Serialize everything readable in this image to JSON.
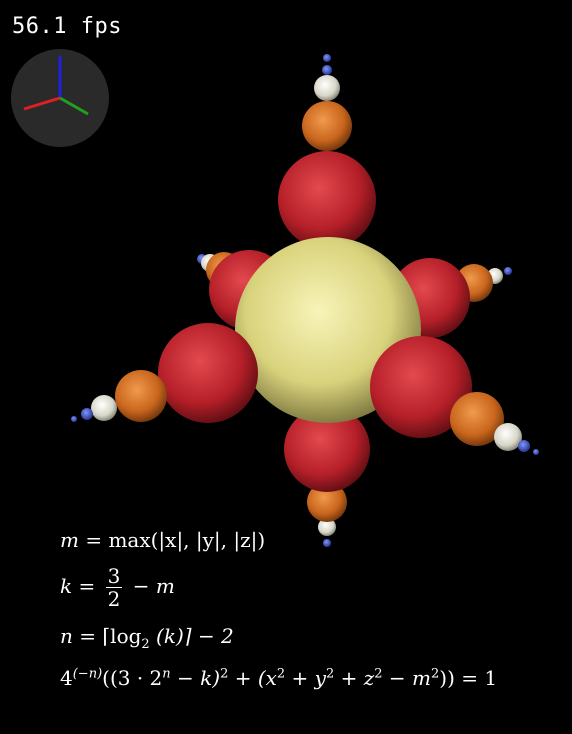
{
  "hud": {
    "fps": "56.1 fps"
  },
  "gizmo": {
    "x_color": "#e02020",
    "y_color": "#20a020",
    "z_color": "#2020e0"
  },
  "scene": {
    "center_color": "#e3dd86",
    "colors": {
      "red": "#b51f28",
      "orange": "#d36a1e",
      "white": "#e8e6d8",
      "blue": "#2b47c8"
    }
  },
  "equations": {
    "eq1": {
      "lhs": "m",
      "op": "=",
      "rhs": "max(|x|, |y|, |z|)"
    },
    "eq2": {
      "lhs": "k",
      "op": "=",
      "num": "3",
      "den": "2",
      "rest": "− m"
    },
    "eq3": {
      "lhs": "n",
      "op": "=",
      "rhs": "⌈log",
      "sub": "2",
      "rhs2": " (k)⌉ − 2"
    },
    "eq4": {
      "base": "4",
      "exp": "(−n)",
      "body": "((3 · 2",
      "exp2": "n",
      "body2": " − k)",
      "exp3": "2",
      "body3": " + (x",
      "e4": "2",
      "body4": " + y",
      "e5": "2",
      "body5": " + z",
      "e6": "2",
      "body6": " − m",
      "e7": "2",
      "body7": ")) = 1"
    }
  }
}
